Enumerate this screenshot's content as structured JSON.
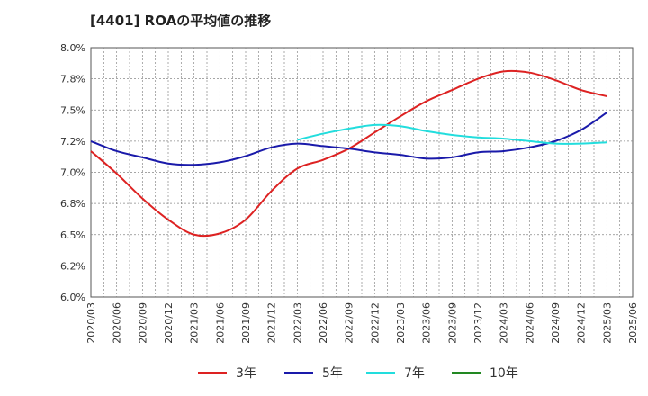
{
  "chart_data": {
    "type": "line",
    "title": "[4401]  ROAの平均値の推移",
    "xlabel": "",
    "ylabel": "",
    "ylim": [
      6.0,
      8.0
    ],
    "yticks": [
      "8.0%",
      "7.8%",
      "7.5%",
      "7.2%",
      "7.0%",
      "6.8%",
      "6.5%",
      "6.2%",
      "6.0%"
    ],
    "categories": [
      "2020/03",
      "2020/06",
      "2020/09",
      "2020/12",
      "2021/03",
      "2021/06",
      "2021/09",
      "2021/12",
      "2022/03",
      "2022/06",
      "2022/09",
      "2022/12",
      "2023/03",
      "2023/06",
      "2023/09",
      "2023/12",
      "2024/03",
      "2024/06",
      "2024/09",
      "2024/12",
      "2025/03",
      "2025/06"
    ],
    "grid": true,
    "legend_position": "bottom",
    "series": [
      {
        "name": "3年",
        "color": "#dd2222",
        "values": [
          7.17,
          6.99,
          6.79,
          6.62,
          6.5,
          6.51,
          6.62,
          6.85,
          7.03,
          7.1,
          7.19,
          7.32,
          7.45,
          7.57,
          7.66,
          7.75,
          7.81,
          7.8,
          7.74,
          7.66,
          7.61,
          null
        ]
      },
      {
        "name": "5年",
        "color": "#1a1aaa",
        "values": [
          7.25,
          7.17,
          7.12,
          7.07,
          7.06,
          7.08,
          7.13,
          7.2,
          7.23,
          7.21,
          7.19,
          7.16,
          7.14,
          7.11,
          7.12,
          7.16,
          7.17,
          7.2,
          7.25,
          7.34,
          7.48,
          null
        ]
      },
      {
        "name": "7年",
        "color": "#22dddd",
        "values": [
          null,
          null,
          null,
          null,
          null,
          null,
          null,
          null,
          7.26,
          7.31,
          7.35,
          7.38,
          7.37,
          7.33,
          7.3,
          7.28,
          7.27,
          7.25,
          7.23,
          7.23,
          7.24,
          null
        ]
      },
      {
        "name": "10年",
        "color": "#228822",
        "values": [
          null,
          null,
          null,
          null,
          null,
          null,
          null,
          null,
          null,
          null,
          null,
          null,
          null,
          null,
          null,
          null,
          null,
          null,
          null,
          null,
          null,
          null
        ]
      }
    ]
  }
}
